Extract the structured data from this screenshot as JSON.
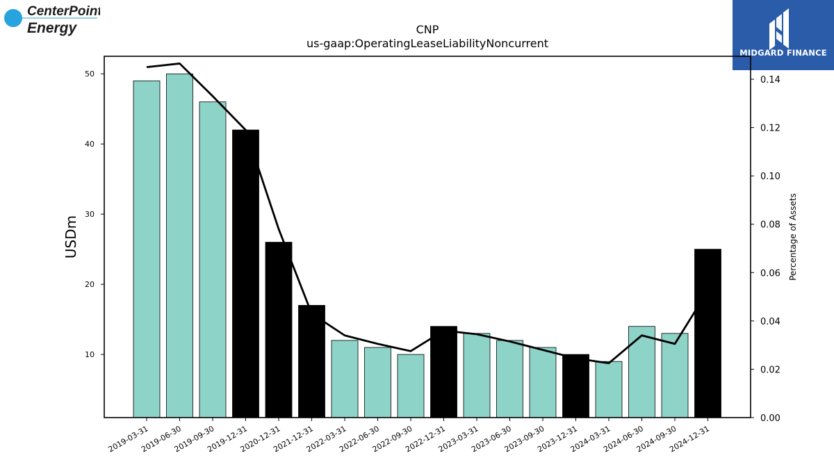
{
  "branding": {
    "company_logo_line1": "CenterPoint",
    "company_logo_line2": "Energy",
    "publisher_name": "MIDGARD FINANCE"
  },
  "chart_data": {
    "type": "bar",
    "title": "CNP",
    "subtitle": "us-gaap:OperatingLeaseLiabilityNoncurrent",
    "ylabel": "USDm",
    "y2label": "Percentage of Assets",
    "ylim": [
      1,
      52.5
    ],
    "y2lim": [
      0,
      0.1495
    ],
    "yticks": [
      10,
      20,
      30,
      40,
      50
    ],
    "y2ticks": [
      0.0,
      0.02,
      0.04,
      0.06,
      0.08,
      0.1,
      0.12,
      0.14
    ],
    "y2tick_labels": [
      "0.00",
      "0.02",
      "0.04",
      "0.06",
      "0.08",
      "0.10",
      "0.12",
      "0.14"
    ],
    "categories": [
      "2019-03-31",
      "2019-06-30",
      "2019-09-30",
      "2019-12-31",
      "2020-12-31",
      "2021-12-31",
      "2022-03-31",
      "2022-06-30",
      "2022-09-30",
      "2022-12-31",
      "2023-03-31",
      "2023-06-30",
      "2023-09-30",
      "2023-12-31",
      "2024-03-31",
      "2024-06-30",
      "2024-09-30",
      "2024-12-31"
    ],
    "series": [
      {
        "type": "bar",
        "values": [
          49,
          50,
          46,
          42,
          26,
          17,
          12,
          11,
          10,
          14,
          13,
          12,
          11,
          10,
          9,
          14,
          13,
          25
        ],
        "annual_flags": [
          false,
          false,
          false,
          true,
          true,
          true,
          false,
          false,
          false,
          true,
          false,
          false,
          false,
          true,
          false,
          false,
          false,
          true
        ]
      },
      {
        "type": "line",
        "axis": "right",
        "values": [
          0.145,
          0.1465,
          0.133,
          0.119,
          0.078,
          0.043,
          0.034,
          0.0305,
          0.0275,
          0.036,
          0.0345,
          0.0315,
          0.028,
          0.0245,
          0.0225,
          0.034,
          0.0305,
          0.0525
        ]
      }
    ],
    "colors": {
      "quarter_bar": "#8dd3c7",
      "annual_bar": "#000000",
      "line": "#000000"
    },
    "grid": false,
    "legend": "none"
  }
}
